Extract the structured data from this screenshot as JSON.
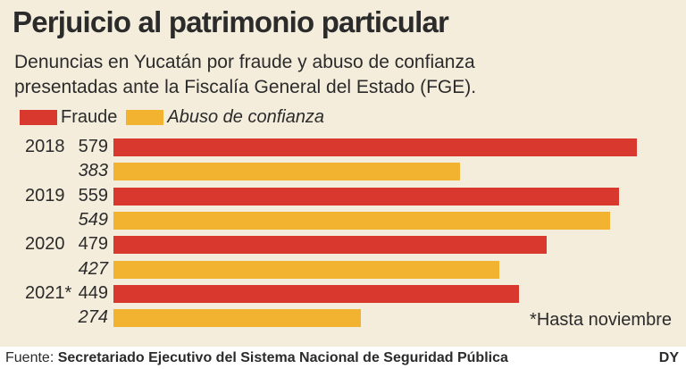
{
  "title": "Perjuicio al  patrimonio particular",
  "subtitle_lines": [
    "Denuncias en Yucatán por fraude y abuso de confianza",
    "presentadas ante la Fiscalía General del Estado (FGE)."
  ],
  "chart_data": {
    "type": "bar",
    "orientation": "horizontal",
    "categories": [
      "2018",
      "2019",
      "2020",
      "2021*"
    ],
    "series": [
      {
        "name": "Fraude",
        "color": "#d9382e",
        "values": [
          579,
          559,
          479,
          449
        ]
      },
      {
        "name": "Abuso de confianza",
        "color": "#f2b430",
        "values": [
          383,
          549,
          427,
          274
        ]
      }
    ],
    "note": "*Hasta noviembre"
  },
  "footer": {
    "label": "Fuente: ",
    "source": "Secretariado Ejecutivo del Sistema Nacional de Seguridad  Pública",
    "credit": "DY"
  }
}
